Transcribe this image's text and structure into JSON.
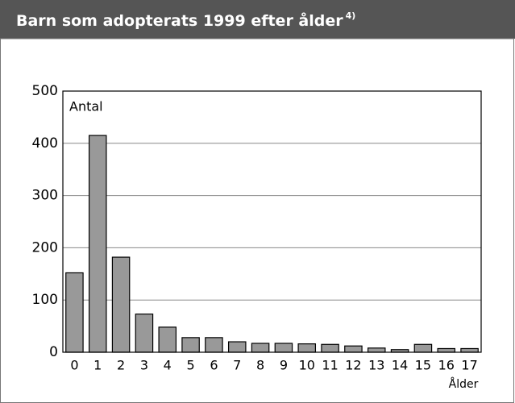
{
  "chart_data": {
    "type": "bar",
    "title": "Barn som adopterats 1999 efter ålder",
    "title_note": "4)",
    "y_label": "Antal",
    "x_label": "Ålder",
    "categories": [
      "0",
      "1",
      "2",
      "3",
      "4",
      "5",
      "6",
      "7",
      "8",
      "9",
      "10",
      "11",
      "12",
      "13",
      "14",
      "15",
      "16",
      "17"
    ],
    "values": [
      152,
      415,
      182,
      73,
      48,
      28,
      28,
      20,
      17,
      17,
      16,
      15,
      12,
      8,
      5,
      15,
      7,
      7
    ],
    "color": "#999999",
    "ylim": [
      0,
      500
    ],
    "yticks": [
      0,
      100,
      200,
      300,
      400,
      500
    ],
    "grid": true
  }
}
